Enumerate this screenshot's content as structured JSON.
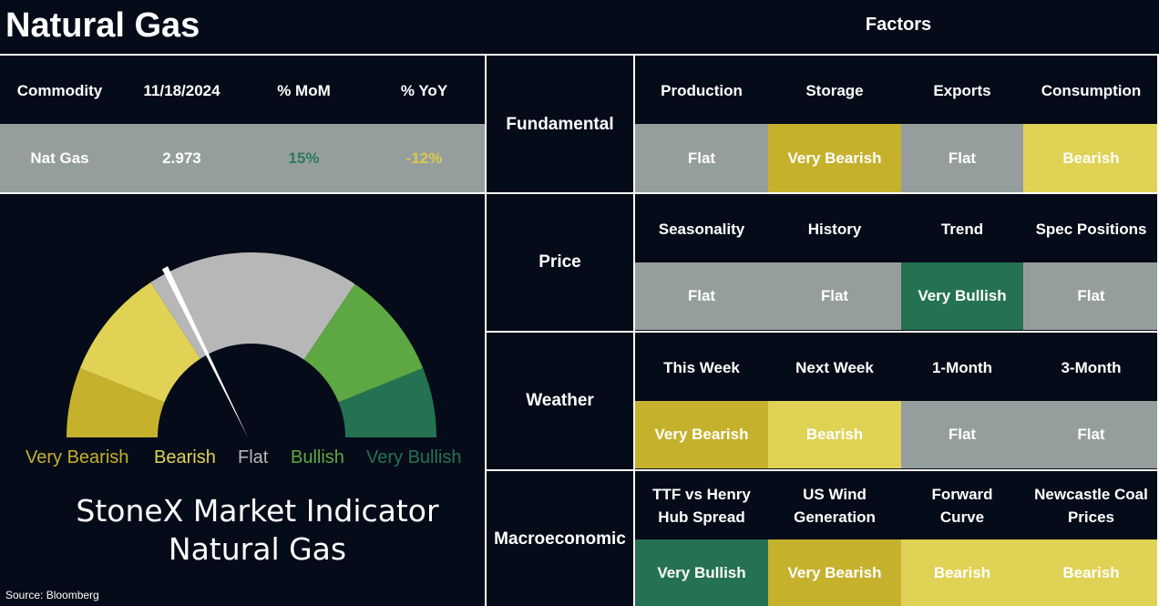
{
  "header": {
    "title": "Natural Gas",
    "factors_title": "Factors"
  },
  "commodity_table": {
    "headers": [
      "Commodity",
      "11/18/2024",
      "% MoM",
      "% YoY"
    ],
    "row": {
      "commodity": "Nat Gas",
      "price": "2.973",
      "mom": "15%",
      "yoy": "-12%"
    },
    "colors": {
      "mom": "#2e7a5a",
      "yoy": "#d9c94f",
      "row_bg": "#959e9d"
    }
  },
  "gauge": {
    "labels": [
      "Very Bearish",
      "Bearish",
      "Flat",
      "Bullish",
      "Very Bullish"
    ],
    "label_colors": [
      "#c6b12d",
      "#e0d255",
      "#b7b7b7",
      "#5ea843",
      "#257253"
    ],
    "needle_position": "Flat",
    "title_line1": "StoneX Market Indicator",
    "title_line2": "Natural Gas"
  },
  "source": "Source: Bloomberg",
  "factors": [
    {
      "name": "Fundamental",
      "items": [
        {
          "label": "Production",
          "value": "Flat"
        },
        {
          "label": "Storage",
          "value": "Very Bearish"
        },
        {
          "label": "Exports",
          "value": "Flat"
        },
        {
          "label": "Consumption",
          "value": "Bearish"
        }
      ]
    },
    {
      "name": "Price",
      "items": [
        {
          "label": "Seasonality",
          "value": "Flat"
        },
        {
          "label": "History",
          "value": "Flat"
        },
        {
          "label": "Trend",
          "value": "Very Bullish"
        },
        {
          "label": "Spec Positions",
          "value": "Flat"
        }
      ]
    },
    {
      "name": "Weather",
      "items": [
        {
          "label": "This Week",
          "value": "Very Bearish"
        },
        {
          "label": "Next Week",
          "value": "Bearish"
        },
        {
          "label": "1-Month",
          "value": "Flat"
        },
        {
          "label": "3-Month",
          "value": "Flat"
        }
      ]
    },
    {
      "name": "Macroeconomic",
      "items": [
        {
          "label": "TTF vs Henry Hub Spread",
          "value": "Very Bullish"
        },
        {
          "label": "US Wind Generation",
          "value": "Very Bearish"
        },
        {
          "label": "Forward Curve",
          "value": "Bearish"
        },
        {
          "label": "Newcastle Coal Prices",
          "value": "Bearish"
        }
      ]
    }
  ],
  "status_colors": {
    "Flat": "#959e9d",
    "Very Bearish": "#c6b12d",
    "Bearish": "#e0d255",
    "Bullish": "#5ea843",
    "Very Bullish": "#257253"
  }
}
